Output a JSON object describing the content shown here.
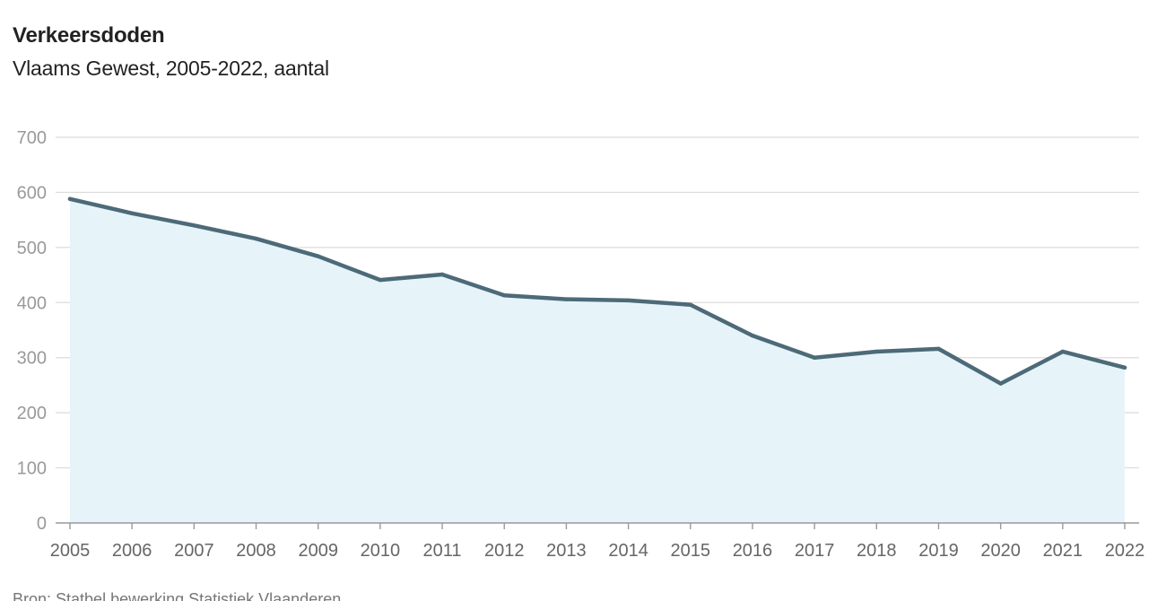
{
  "header": {
    "title": "Verkeersdoden",
    "subtitle": "Vlaams Gewest, 2005-2022, aantal"
  },
  "footer": {
    "source": "Bron: Statbel bewerking Statistiek Vlaanderen"
  },
  "colors": {
    "line": "#4d6a78",
    "area": "#e6f4fa",
    "grid": "#dcdcdc",
    "axis": "#999999"
  },
  "chart_data": {
    "type": "area",
    "title": "Verkeersdoden",
    "subtitle": "Vlaams Gewest, 2005-2022, aantal",
    "xlabel": "",
    "ylabel": "",
    "ylim": [
      0,
      700
    ],
    "yticks": [
      0,
      100,
      200,
      300,
      400,
      500,
      600,
      700
    ],
    "grid": true,
    "legend": "none",
    "x": [
      2005,
      2006,
      2007,
      2008,
      2009,
      2010,
      2011,
      2012,
      2013,
      2014,
      2015,
      2016,
      2017,
      2018,
      2019,
      2020,
      2021,
      2022
    ],
    "values": [
      588,
      562,
      540,
      516,
      484,
      441,
      451,
      413,
      406,
      404,
      396,
      340,
      300,
      311,
      316,
      253,
      311,
      282
    ]
  }
}
